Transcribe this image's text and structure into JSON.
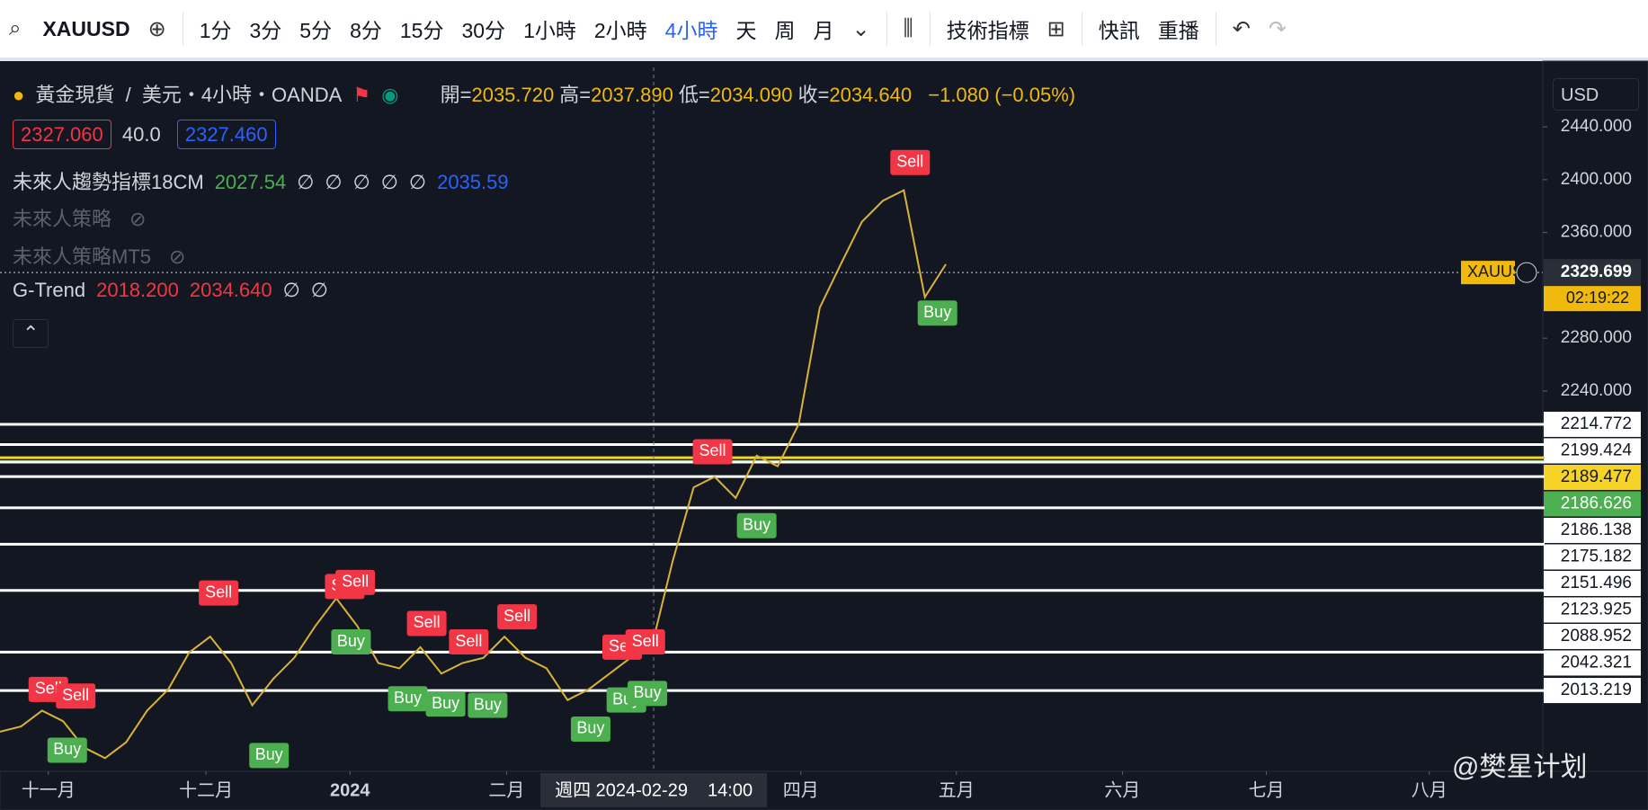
{
  "toolbar": {
    "symbol": "XAUUSD",
    "intervals": [
      "1分",
      "3分",
      "5分",
      "8分",
      "15分",
      "30分",
      "1小時",
      "2小時",
      "4小時",
      "天",
      "周",
      "月"
    ],
    "active_interval_index": 8,
    "indicators": "技術指標",
    "alerts": "快訊",
    "replay": "重播"
  },
  "legend": {
    "name": "黃金現貨",
    "separator": "/",
    "details": "美元・4小時・OANDA",
    "ohlc": [
      {
        "key": "開=",
        "value": "2035.720"
      },
      {
        "key": "高=",
        "value": "2037.890"
      },
      {
        "key": "低=",
        "value": "2034.090"
      },
      {
        "key": "收=",
        "value": "2034.640"
      }
    ],
    "change": "−1.080 (−0.05%)",
    "bid": "2327.060",
    "spread": "40.0",
    "ask": "2327.460",
    "indicators": [
      {
        "name": "未來人趨勢指標18CM",
        "values": [
          "2027.54",
          "∅",
          "∅",
          "∅",
          "∅",
          "∅",
          "2035.59"
        ]
      },
      {
        "name": "未來人策略",
        "values": []
      },
      {
        "name": "未來人策略MT5",
        "values": []
      },
      {
        "name": "G-Trend",
        "values": [
          "2018.200",
          "2034.640",
          "∅",
          "∅"
        ]
      }
    ]
  },
  "currency": "USD",
  "watermark": "@樊星计划",
  "chart_data": {
    "type": "line",
    "series": [
      {
        "name": "XAUUSD",
        "color": "#d9b23a",
        "values": [
          1982,
          1986,
          1998,
          1990,
          1970,
          1962,
          1974,
          1998,
          2014,
          2042,
          2054,
          2034,
          2002,
          2022,
          2038,
          2062,
          2083,
          2062,
          2034,
          2030,
          2046,
          2026,
          2034,
          2038,
          2054,
          2038,
          2030,
          2006,
          2014,
          2026,
          2038,
          2046,
          2111,
          2167,
          2175,
          2159,
          2191,
          2183,
          2215,
          2303,
          2336,
          2368,
          2384,
          2392,
          2311,
          2336
        ]
      }
    ],
    "xlim": [
      0,
      73.4
    ],
    "xticks": [
      {
        "value": 2.3,
        "label": "十一月"
      },
      {
        "value": 9.8,
        "label": "十二月"
      },
      {
        "value": 16.65,
        "label": "2024"
      },
      {
        "value": 24.1,
        "label": "二月"
      },
      {
        "value": 38.1,
        "label": "四月"
      },
      {
        "value": 45.5,
        "label": "五月"
      },
      {
        "value": 53.4,
        "label": "六月"
      },
      {
        "value": 60.25,
        "label": "七月"
      },
      {
        "value": 68,
        "label": "八月"
      }
    ],
    "ylim": [
      1952,
      2485
    ],
    "yticks": [
      {
        "value": 2440,
        "label": "2440.000"
      },
      {
        "value": 2400,
        "label": "2400.000"
      },
      {
        "value": 2360,
        "label": "2360.000"
      },
      {
        "value": 2280,
        "label": "2280.000"
      },
      {
        "value": 2240,
        "label": "2240.000"
      }
    ],
    "levels": [
      {
        "value": 2214.772,
        "color": "#ffffff"
      },
      {
        "value": 2199.424,
        "color": "#ffffff"
      },
      {
        "value": 2189.477,
        "color": "#f5d327"
      },
      {
        "value": 2186.626,
        "color": "#4caf50"
      },
      {
        "value": 2186.138,
        "color": "#ffffff"
      },
      {
        "value": 2175.182,
        "color": "#ffffff"
      },
      {
        "value": 2151.496,
        "color": "#ffffff"
      },
      {
        "value": 2123.925,
        "color": "#ffffff"
      },
      {
        "value": 2088.952,
        "color": "#ffffff"
      },
      {
        "value": 2042.321,
        "color": "#ffffff"
      },
      {
        "value": 2013.219,
        "color": "#ffffff"
      }
    ],
    "current": {
      "value": 2329.699,
      "symbol": "XAUUSD",
      "countdown": "02:19:22"
    },
    "crosshair": {
      "x": 31.1,
      "day": "週四 2024-02-29",
      "time": "14:00"
    },
    "signals": [
      {
        "text": "Sell",
        "x": 2.3,
        "price": 2014
      },
      {
        "text": "Sell",
        "x": 3.6,
        "price": 2009
      },
      {
        "text": "Buy",
        "x": 3.2,
        "price": 1968
      },
      {
        "text": "Sell",
        "x": 10.4,
        "price": 2087
      },
      {
        "text": "Buy",
        "x": 12.8,
        "price": 1964
      },
      {
        "text": "Sell",
        "x": 16.4,
        "price": 2092
      },
      {
        "text": "Sell",
        "x": 16.9,
        "price": 2095
      },
      {
        "text": "Buy",
        "x": 16.7,
        "price": 2050
      },
      {
        "text": "Sell",
        "x": 20.3,
        "price": 2064
      },
      {
        "text": "Buy",
        "x": 19.4,
        "price": 2007
      },
      {
        "text": "Buy",
        "x": 21.2,
        "price": 2003
      },
      {
        "text": "Sell",
        "x": 22.3,
        "price": 2050
      },
      {
        "text": "Buy",
        "x": 23.2,
        "price": 2002
      },
      {
        "text": "Sell",
        "x": 24.6,
        "price": 2069
      },
      {
        "text": "Sell",
        "x": 29.6,
        "price": 2046
      },
      {
        "text": "Sell",
        "x": 30.7,
        "price": 2050
      },
      {
        "text": "Buy",
        "x": 28.1,
        "price": 1984
      },
      {
        "text": "Buy",
        "x": 29.8,
        "price": 2006
      },
      {
        "text": "Buy",
        "x": 30.8,
        "price": 2011
      },
      {
        "text": "Sell",
        "x": 33.9,
        "price": 2194
      },
      {
        "text": "Buy",
        "x": 36,
        "price": 2138
      },
      {
        "text": "Sell",
        "x": 43.3,
        "price": 2413
      },
      {
        "text": "Buy",
        "x": 44.6,
        "price": 2299
      }
    ]
  }
}
